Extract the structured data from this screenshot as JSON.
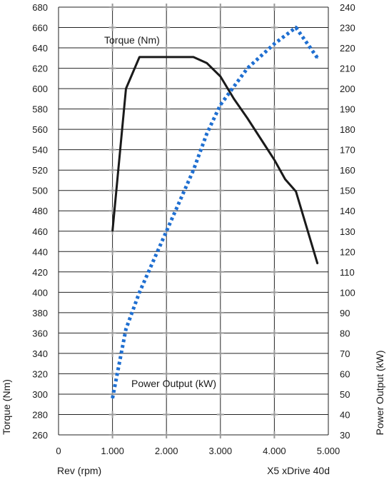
{
  "chart_data": {
    "type": "line",
    "title": "",
    "xlabel": "Rev (rpm)",
    "ylabel": "Torque (Nm)",
    "y2label": "Power Output (kW)",
    "caption": "X5 xDrive 40d",
    "xlim": [
      0,
      5000
    ],
    "ylim": [
      260,
      680
    ],
    "y2lim": [
      30,
      240
    ],
    "x_ticks": [
      0,
      1000,
      2000,
      3000,
      4000,
      5000
    ],
    "x_tick_labels": [
      "0",
      "1.000",
      "2.000",
      "3.000",
      "4.000",
      "5.000"
    ],
    "y_ticks": [
      260,
      280,
      300,
      320,
      340,
      360,
      380,
      400,
      420,
      440,
      460,
      480,
      500,
      520,
      540,
      560,
      580,
      600,
      620,
      640,
      660,
      680
    ],
    "y2_ticks": [
      30,
      40,
      50,
      60,
      70,
      80,
      90,
      100,
      110,
      120,
      130,
      140,
      150,
      160,
      170,
      180,
      190,
      200,
      210,
      220,
      230,
      240
    ],
    "grid": true,
    "series": [
      {
        "name": "Torque (Nm)",
        "axis": "left",
        "color": "#1a1a1a",
        "style": "solid",
        "x": [
          1000,
          1250,
          1500,
          2000,
          2500,
          2750,
          3000,
          3250,
          3500,
          4000,
          4200,
          4400,
          4800
        ],
        "y": [
          460,
          600,
          631,
          631,
          631,
          625,
          612,
          590,
          571,
          530,
          511,
          499,
          428
        ]
      },
      {
        "name": "Power Output (kW)",
        "axis": "right",
        "color": "#1f6fd1",
        "style": "dotted",
        "x": [
          1000,
          1250,
          1500,
          2000,
          2500,
          2750,
          3000,
          3500,
          4000,
          4400,
          4800
        ],
        "y": [
          48,
          82,
          100,
          130,
          160,
          178,
          192,
          210,
          222,
          230,
          215
        ]
      }
    ]
  }
}
